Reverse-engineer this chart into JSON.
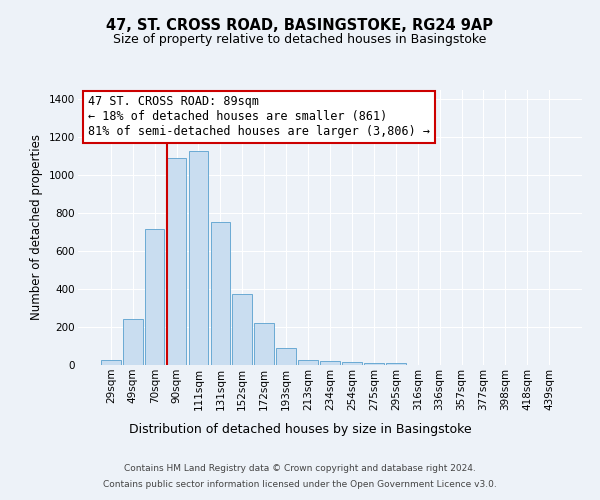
{
  "title": "47, ST. CROSS ROAD, BASINGSTOKE, RG24 9AP",
  "subtitle": "Size of property relative to detached houses in Basingstoke",
  "xlabel": "Distribution of detached houses by size in Basingstoke",
  "ylabel": "Number of detached properties",
  "categories": [
    "29sqm",
    "49sqm",
    "70sqm",
    "90sqm",
    "111sqm",
    "131sqm",
    "152sqm",
    "172sqm",
    "193sqm",
    "213sqm",
    "234sqm",
    "254sqm",
    "275sqm",
    "295sqm",
    "316sqm",
    "336sqm",
    "357sqm",
    "377sqm",
    "398sqm",
    "418sqm",
    "439sqm"
  ],
  "values": [
    28,
    240,
    718,
    1090,
    1130,
    755,
    375,
    220,
    90,
    27,
    22,
    18,
    13,
    8,
    0,
    0,
    0,
    0,
    0,
    0,
    0
  ],
  "bar_color": "#c9ddf0",
  "bar_edge_color": "#6aaad4",
  "vline_color": "#cc0000",
  "annotation_text": "47 ST. CROSS ROAD: 89sqm\n← 18% of detached houses are smaller (861)\n81% of semi-detached houses are larger (3,806) →",
  "annotation_box_edgecolor": "#cc0000",
  "ylim": [
    0,
    1450
  ],
  "yticks": [
    0,
    200,
    400,
    600,
    800,
    1000,
    1200,
    1400
  ],
  "footer_line1": "Contains HM Land Registry data © Crown copyright and database right 2024.",
  "footer_line2": "Contains public sector information licensed under the Open Government Licence v3.0.",
  "bg_color": "#edf2f8",
  "plot_bg_color": "#edf2f8",
  "title_fontsize": 10.5,
  "subtitle_fontsize": 9,
  "xlabel_fontsize": 9,
  "ylabel_fontsize": 8.5,
  "tick_fontsize": 7.5,
  "annotation_fontsize": 8.5,
  "vline_x_index": 3
}
